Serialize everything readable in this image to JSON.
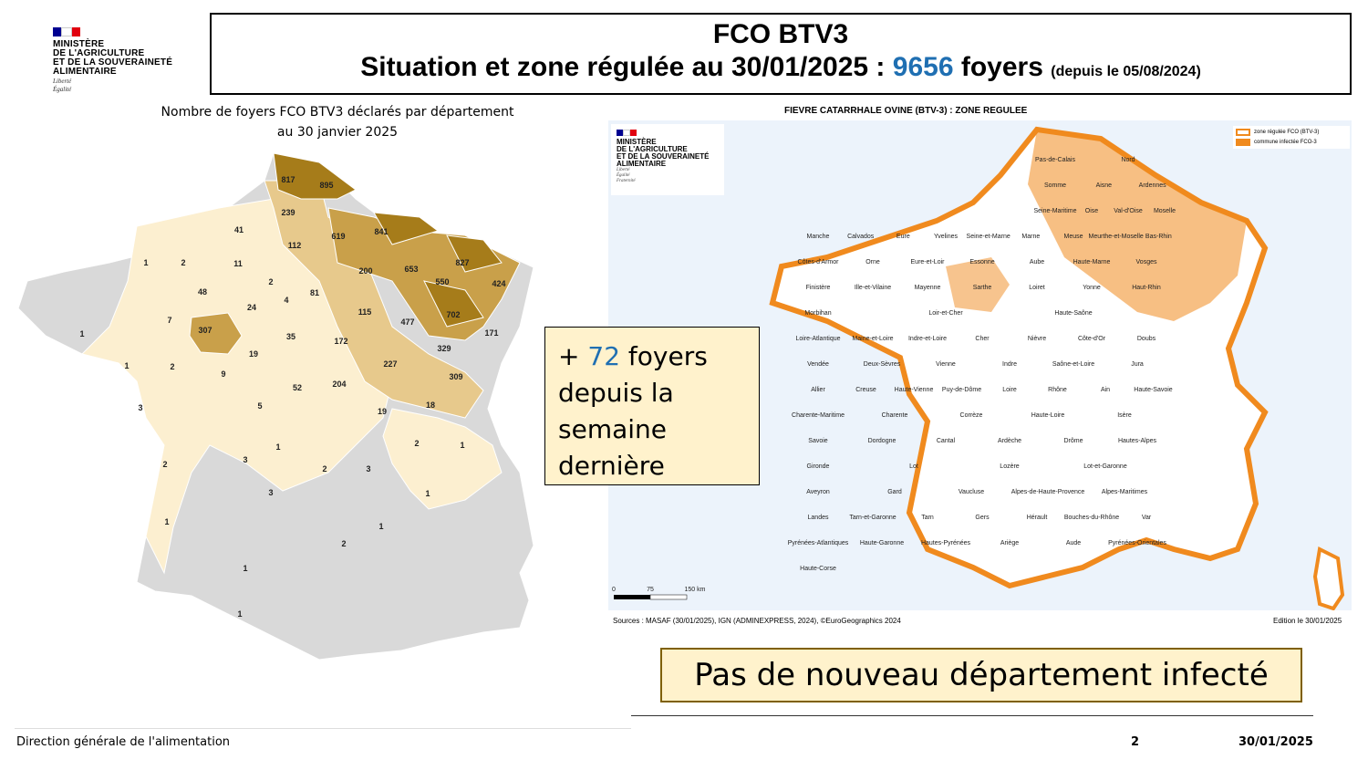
{
  "logo": {
    "org_lines": [
      "MINISTÈRE",
      "DE L'AGRICULTURE",
      "ET DE LA SOUVERAINETÉ",
      "ALIMENTAIRE"
    ],
    "motto": [
      "Liberté",
      "Égalité",
      "Fraternité"
    ],
    "flag_colors": [
      "#000091",
      "#ffffff",
      "#e1000f"
    ]
  },
  "title": {
    "line1": "FCO BTV3",
    "line2_prefix": "Situation et zone régulée au 30/01/2025 : ",
    "count": "9656",
    "line2_suffix": " foyers ",
    "since": "(depuis le 05/08/2024)"
  },
  "left_map": {
    "title_line1": "Nombre de foyers FCO BTV3 déclarés par département",
    "title_line2": "au 30 janvier 2025",
    "colors": {
      "none": "#d9d9d9",
      "low": "#fcefd0",
      "mid": "#e7c98c",
      "high": "#c9a04a",
      "top": "#a67c1a"
    },
    "labels": [
      "817",
      "895",
      "239",
      "41",
      "112",
      "619",
      "841",
      "827",
      "1",
      "2",
      "11",
      "653",
      "550",
      "424",
      "200",
      "48",
      "2",
      "81",
      "4",
      "24",
      "115",
      "7",
      "307",
      "35",
      "172",
      "477",
      "702",
      "171",
      "1",
      "329",
      "19",
      "1",
      "2",
      "9",
      "227",
      "309",
      "52",
      "204",
      "3",
      "5",
      "19",
      "18",
      "1",
      "2",
      "1",
      "3",
      "2",
      "3",
      "2",
      "1",
      "3",
      "1",
      "1",
      "2",
      "1",
      "1",
      "1",
      "19"
    ]
  },
  "right_map": {
    "title": "FIEVRE CATARRHALE OVINE (BTV-3) : ZONE REGULEE",
    "legend": [
      {
        "label": "zone régulée FCO (BTV-3)",
        "color": "#f08a1e"
      },
      {
        "label": "commune infectée FCO-3",
        "color": "#f08a1e"
      }
    ],
    "scale": [
      "0",
      "75",
      "150 km"
    ],
    "sources": "Sources : MASAF (30/01/2025), IGN (ADMINEXPRESS, 2024), ©EuroGeographics 2024",
    "edition": "Edition le 30/01/2025",
    "departments": [
      "Pas-de-Calais",
      "Nord",
      "Somme",
      "Aisne",
      "Ardennes",
      "Seine-Maritime",
      "Oise",
      "Val-d'Oise",
      "Moselle",
      "Manche",
      "Calvados",
      "Eure",
      "Yvelines",
      "Seine-et-Marne",
      "Marne",
      "Meuse",
      "Meurthe-et-Moselle",
      "Bas-Rhin",
      "Côtes-d'Armor",
      "Orne",
      "Eure-et-Loir",
      "Essonne",
      "Aube",
      "Haute-Marne",
      "Vosges",
      "Finistère",
      "Ille-et-Vilaine",
      "Mayenne",
      "Sarthe",
      "Loiret",
      "Yonne",
      "Haut-Rhin",
      "Morbihan",
      "Loir-et-Cher",
      "Haute-Saône",
      "Loire-Atlantique",
      "Maine-et-Loire",
      "Indre-et-Loire",
      "Cher",
      "Nièvre",
      "Côte-d'Or",
      "Doubs",
      "Vendée",
      "Deux-Sèvres",
      "Vienne",
      "Indre",
      "Saône-et-Loire",
      "Jura",
      "Allier",
      "Creuse",
      "Haute-Vienne",
      "Puy-de-Dôme",
      "Loire",
      "Rhône",
      "Ain",
      "Haute-Savoie",
      "Charente-Maritime",
      "Charente",
      "Corrèze",
      "Haute-Loire",
      "Isère",
      "Savoie",
      "Dordogne",
      "Cantal",
      "Ardèche",
      "Drôme",
      "Hautes-Alpes",
      "Gironde",
      "Lot",
      "Lozère",
      "Lot-et-Garonne",
      "Aveyron",
      "Gard",
      "Vaucluse",
      "Alpes-de-Haute-Provence",
      "Alpes-Maritimes",
      "Landes",
      "Tarn-et-Garonne",
      "Tarn",
      "Gers",
      "Hérault",
      "Bouches-du-Rhône",
      "Var",
      "Pyrénées-Atlantiques",
      "Haute-Garonne",
      "Hautes-Pyrénées",
      "Ariège",
      "Aude",
      "Pyrénées-Orientales",
      "Haute-Corse"
    ]
  },
  "callout1": {
    "prefix": "+ ",
    "count": "72",
    "text_lines": [
      " foyers",
      "depuis la",
      "semaine",
      "dernière"
    ]
  },
  "callout2": "Pas de nouveau département infecté",
  "footer": {
    "left": "Direction générale de l'alimentation",
    "page": "2",
    "date": "30/01/2025"
  }
}
